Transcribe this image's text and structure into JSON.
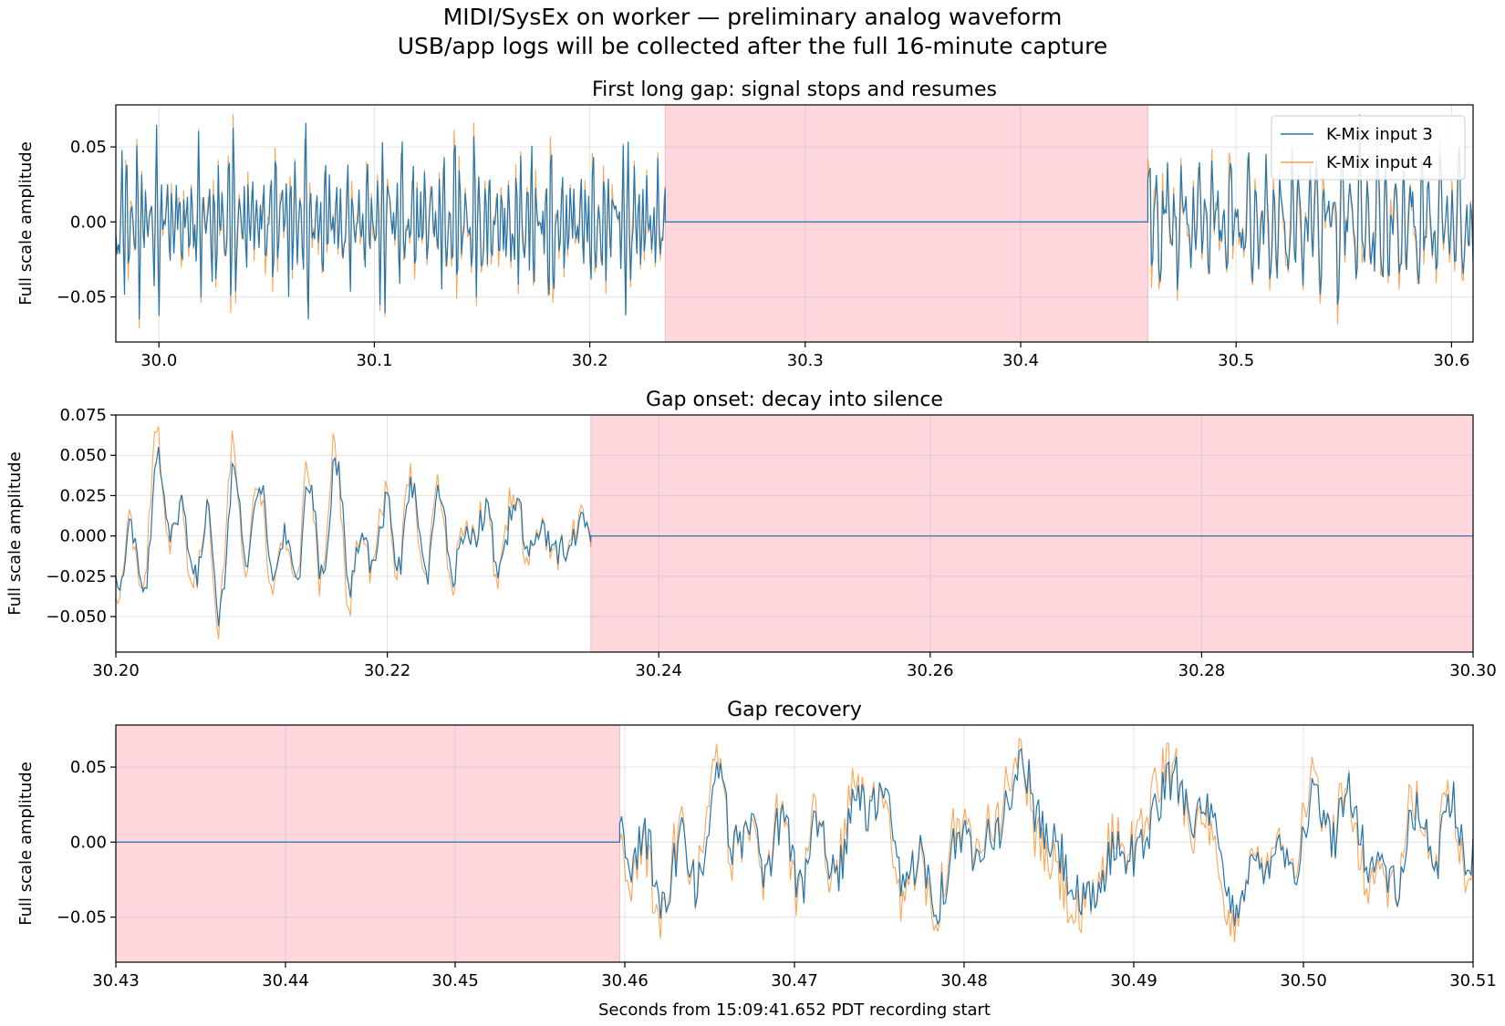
{
  "suptitle": {
    "line1": "MIDI/SysEx on worker — preliminary analog waveform",
    "line2": "USB/app logs will be collected after the full 16-minute capture"
  },
  "colors": {
    "ch3": "#1f77b4",
    "ch4": "#ff7f0e",
    "gap": "#fdd7dc",
    "gap_edge": "#f5b8c0"
  },
  "legend": {
    "items": [
      "K-Mix input 3",
      "K-Mix input 4"
    ],
    "loc": "upper right"
  },
  "chart_data": [
    {
      "type": "line",
      "title": "First long gap: signal stops and resumes",
      "xlabel": "",
      "ylabel": "Full scale amplitude",
      "xlim": [
        29.98,
        30.61
      ],
      "ylim": [
        -0.08,
        0.078
      ],
      "xticks": [
        30.0,
        30.1,
        30.2,
        30.3,
        30.4,
        30.5,
        30.6
      ],
      "xticklabels": [
        "30.0",
        "30.1",
        "30.2",
        "30.3",
        "30.4",
        "30.5",
        "30.6"
      ],
      "yticks": [
        -0.05,
        0.0,
        0.05
      ],
      "yticklabels": [
        "−0.05",
        "0.00",
        "0.05"
      ],
      "gap": [
        30.235,
        30.459
      ],
      "grid": true,
      "legend": "upper right",
      "series": [
        {
          "name": "K-Mix input 3",
          "amplitude_peak": 0.066
        },
        {
          "name": "K-Mix input 4",
          "amplitude_peak": 0.072
        }
      ]
    },
    {
      "type": "line",
      "title": "Gap onset: decay into silence",
      "xlabel": "",
      "ylabel": "Full scale amplitude",
      "xlim": [
        30.2,
        30.3
      ],
      "ylim": [
        -0.072,
        0.075
      ],
      "xticks": [
        30.2,
        30.22,
        30.24,
        30.26,
        30.28,
        30.3
      ],
      "xticklabels": [
        "30.20",
        "30.22",
        "30.24",
        "30.26",
        "30.28",
        "30.30"
      ],
      "yticks": [
        -0.05,
        -0.025,
        0.0,
        0.025,
        0.05,
        0.075
      ],
      "yticklabels": [
        "−0.050",
        "−0.025",
        "0.000",
        "0.025",
        "0.050",
        "0.075"
      ],
      "gap": [
        30.235,
        30.3
      ],
      "grid": true,
      "series": [
        {
          "name": "K-Mix input 3",
          "amplitude_peak": 0.056
        },
        {
          "name": "K-Mix input 4",
          "amplitude_peak": 0.068
        }
      ]
    },
    {
      "type": "line",
      "title": "Gap recovery",
      "xlabel": "Seconds from 15:09:41.652 PDT recording start",
      "ylabel": "Full scale amplitude",
      "xlim": [
        30.43,
        30.51
      ],
      "ylim": [
        -0.08,
        0.078
      ],
      "xticks": [
        30.43,
        30.44,
        30.45,
        30.46,
        30.47,
        30.48,
        30.49,
        30.5,
        30.51
      ],
      "xticklabels": [
        "30.43",
        "30.44",
        "30.45",
        "30.46",
        "30.47",
        "30.48",
        "30.49",
        "30.50",
        "30.51"
      ],
      "yticks": [
        -0.05,
        0.0,
        0.05
      ],
      "yticklabels": [
        "−0.05",
        "0.00",
        "0.05"
      ],
      "gap": [
        30.43,
        30.4597
      ],
      "grid": true,
      "series": [
        {
          "name": "K-Mix input 3",
          "amplitude_peak": 0.062
        },
        {
          "name": "K-Mix input 4",
          "amplitude_peak": 0.069
        }
      ]
    }
  ]
}
